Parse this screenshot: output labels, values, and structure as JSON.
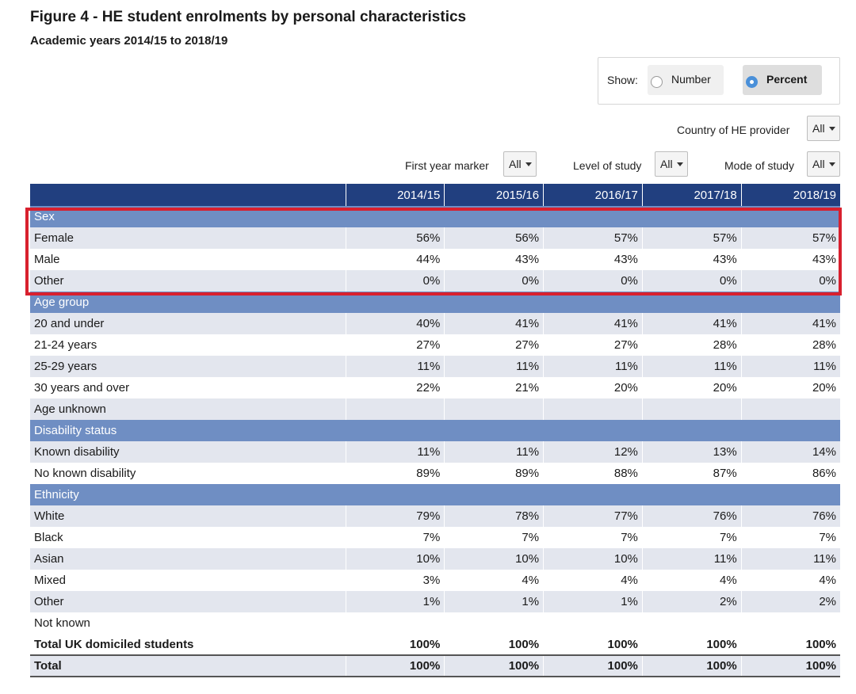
{
  "header": {
    "title": "Figure 4 - HE student enrolments by personal characteristics",
    "subtitle": "Academic years 2014/15 to 2018/19"
  },
  "show_toggle": {
    "label": "Show:",
    "options": [
      {
        "label": "Number",
        "selected": false
      },
      {
        "label": "Percent",
        "selected": true
      }
    ]
  },
  "filters": {
    "country": {
      "label": "Country of HE provider",
      "value": "All"
    },
    "first_year": {
      "label": "First year marker",
      "value": "All"
    },
    "level": {
      "label": "Level of study",
      "value": "All"
    },
    "mode": {
      "label": "Mode of study",
      "value": "All"
    }
  },
  "table": {
    "years": [
      "2014/15",
      "2015/16",
      "2016/17",
      "2017/18",
      "2018/19"
    ],
    "sections": [
      {
        "heading": "Sex",
        "rows": [
          {
            "label": "Female",
            "values": [
              "56%",
              "56%",
              "57%",
              "57%",
              "57%"
            ]
          },
          {
            "label": "Male",
            "values": [
              "44%",
              "43%",
              "43%",
              "43%",
              "43%"
            ]
          },
          {
            "label": "Other",
            "values": [
              "0%",
              "0%",
              "0%",
              "0%",
              "0%"
            ]
          }
        ]
      },
      {
        "heading": "Age group",
        "rows": [
          {
            "label": "20 and under",
            "values": [
              "40%",
              "41%",
              "41%",
              "41%",
              "41%"
            ]
          },
          {
            "label": "21-24 years",
            "values": [
              "27%",
              "27%",
              "27%",
              "28%",
              "28%"
            ]
          },
          {
            "label": "25-29 years",
            "values": [
              "11%",
              "11%",
              "11%",
              "11%",
              "11%"
            ]
          },
          {
            "label": "30 years and over",
            "values": [
              "22%",
              "21%",
              "20%",
              "20%",
              "20%"
            ]
          },
          {
            "label": "Age unknown",
            "values": [
              "",
              "",
              "",
              "",
              ""
            ]
          }
        ]
      },
      {
        "heading": "Disability status",
        "rows": [
          {
            "label": "Known disability",
            "values": [
              "11%",
              "11%",
              "12%",
              "13%",
              "14%"
            ]
          },
          {
            "label": "No known disability",
            "values": [
              "89%",
              "89%",
              "88%",
              "87%",
              "86%"
            ]
          }
        ]
      },
      {
        "heading": "Ethnicity",
        "rows": [
          {
            "label": "White",
            "values": [
              "79%",
              "78%",
              "77%",
              "76%",
              "76%"
            ]
          },
          {
            "label": "Black",
            "values": [
              "7%",
              "7%",
              "7%",
              "7%",
              "7%"
            ]
          },
          {
            "label": "Asian",
            "values": [
              "10%",
              "10%",
              "10%",
              "11%",
              "11%"
            ]
          },
          {
            "label": "Mixed",
            "values": [
              "3%",
              "4%",
              "4%",
              "4%",
              "4%"
            ]
          },
          {
            "label": "Other",
            "values": [
              "1%",
              "1%",
              "1%",
              "2%",
              "2%"
            ]
          },
          {
            "label": "Not known",
            "values": [
              "",
              "",
              "",
              "",
              ""
            ]
          }
        ]
      }
    ],
    "totals": [
      {
        "label": "Total UK domiciled students",
        "values": [
          "100%",
          "100%",
          "100%",
          "100%",
          "100%"
        ]
      },
      {
        "label": "Total",
        "values": [
          "100%",
          "100%",
          "100%",
          "100%",
          "100%"
        ]
      }
    ]
  },
  "colors": {
    "header_bg": "#213f7f",
    "section_bg": "#6f8ec3",
    "row_alt_bg": "#e3e6ee",
    "highlight_border": "#d8202e",
    "radio_selected": "#4a90d9"
  }
}
